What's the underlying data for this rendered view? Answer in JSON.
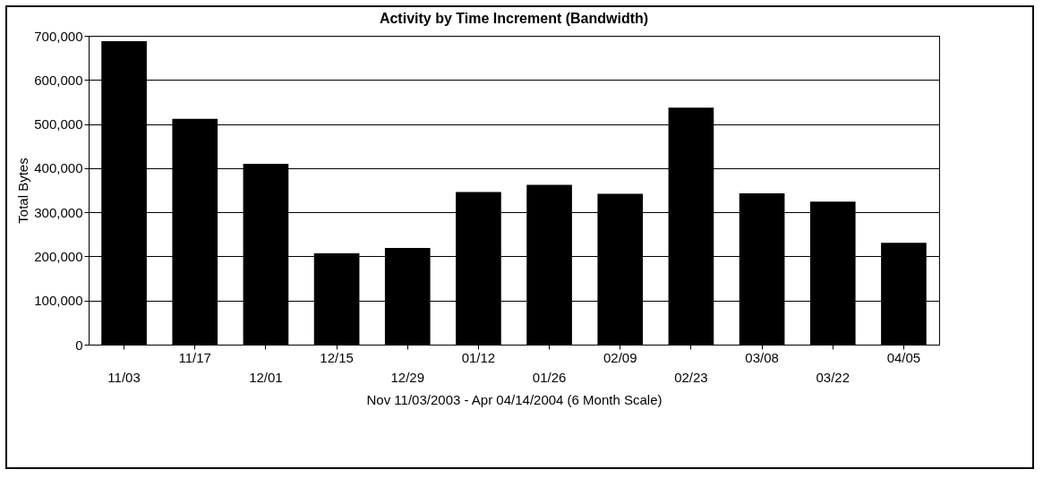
{
  "chart_data": {
    "type": "bar",
    "title": "Activity by Time Increment (Bandwidth)",
    "xlabel": "Nov 11/03/2003 - Apr 04/14/2004 (6 Month Scale)",
    "ylabel": "Total Bytes",
    "categories": [
      "11/03",
      "11/17",
      "12/01",
      "12/15",
      "12/29",
      "01/12",
      "01/26",
      "02/09",
      "02/23",
      "03/08",
      "03/22",
      "04/05"
    ],
    "values": [
      688000,
      512000,
      410000,
      207000,
      219000,
      346000,
      362000,
      342000,
      537000,
      343000,
      324000,
      231000
    ],
    "color": "#000000",
    "ylim": [
      0,
      700000
    ],
    "yticks": [
      0,
      {
        "value": 100000,
        "label": "100,000"
      },
      {
        "value": 200000,
        "label": "200,000"
      },
      {
        "value": 300000,
        "label": "300,000"
      },
      {
        "value": 400000,
        "label": "400,000"
      },
      {
        "value": 500000,
        "label": "500,000"
      },
      {
        "value": 600000,
        "label": "600,000"
      },
      {
        "value": 700000,
        "label": "700,000"
      }
    ],
    "grid": "y"
  }
}
